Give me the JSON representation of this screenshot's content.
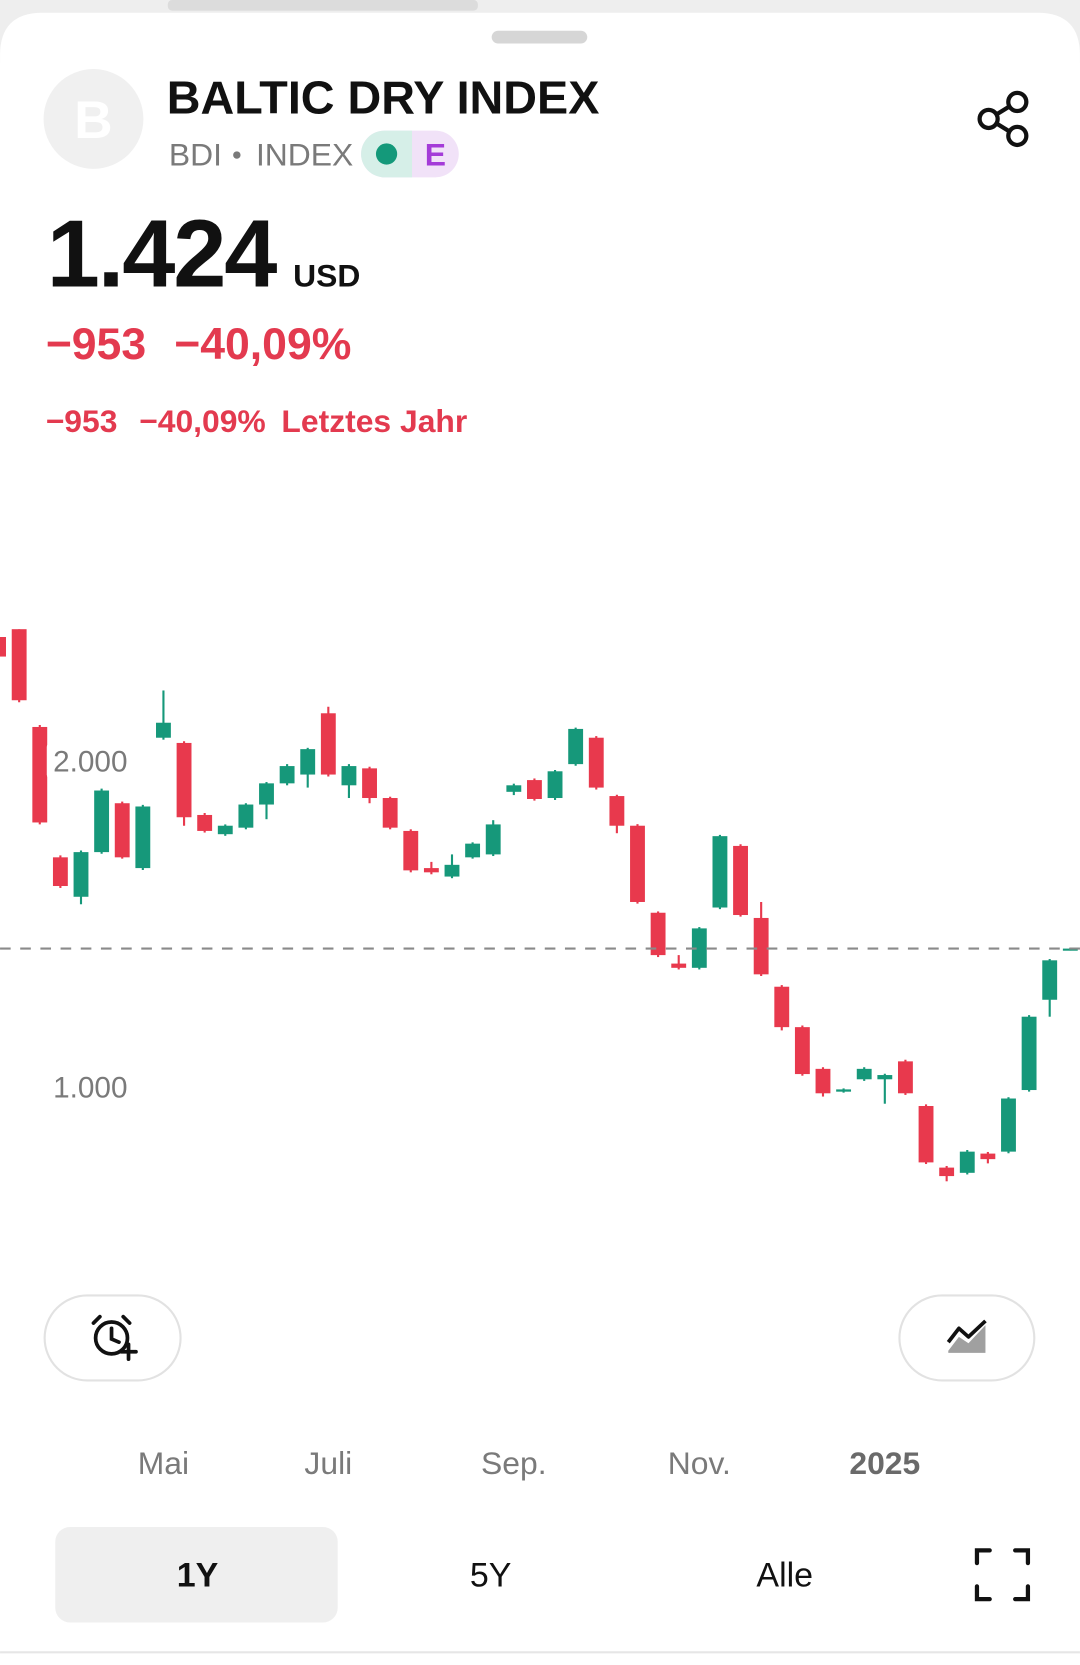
{
  "header": {
    "avatar_letter": "B",
    "title": "BALTIC DRY INDEX",
    "ticker": "BDI",
    "instrument_type": "INDEX",
    "badge": "E",
    "price": "1.424",
    "currency": "USD",
    "change": "−953",
    "change_percent": "−40,09%",
    "period_change": "−953",
    "period_change_percent": "−40,09%",
    "period_label": "Letztes Jahr"
  },
  "chart_data": {
    "type": "candlestick",
    "categories": [
      null,
      null,
      null,
      null,
      null,
      null,
      null,
      null,
      "Mai",
      null,
      null,
      null,
      null,
      null,
      null,
      null,
      "Juli",
      null,
      null,
      null,
      null,
      null,
      null,
      null,
      null,
      "Sep.",
      null,
      null,
      null,
      null,
      null,
      null,
      null,
      null,
      "Nov.",
      null,
      null,
      null,
      null,
      null,
      null,
      null,
      null,
      "2025",
      null,
      null,
      null,
      null,
      null,
      null,
      null,
      null,
      null
    ],
    "open": [
      2380,
      2404,
      2104,
      1704,
      1583,
      1720,
      1870,
      1671,
      2071,
      2055,
      1834,
      1775,
      1795,
      1866,
      1931,
      1958,
      2146,
      1925,
      1977,
      1886,
      1785,
      1671,
      1645,
      1704,
      1713,
      1905,
      1941,
      1886,
      1990,
      2071,
      1892,
      1801,
      1534,
      1378,
      1365,
      1550,
      1739,
      1518,
      1307,
      1183,
      1055,
      985,
      1023,
      1023,
      1078,
      941,
      752,
      736,
      795,
      801,
      990,
      1267,
      1420
    ],
    "high": [
      2390,
      2404,
      2110,
      1710,
      1725,
      1915,
      1875,
      1865,
      2216,
      2060,
      1840,
      1805,
      1870,
      1935,
      1990,
      2040,
      2166,
      1990,
      1982,
      1890,
      1790,
      1690,
      1713,
      1750,
      1818,
      1930,
      1946,
      1972,
      2102,
      2076,
      1896,
      1806,
      1538,
      1404,
      1490,
      1773,
      1744,
      1567,
      1312,
      1188,
      1060,
      995,
      1060,
      1040,
      1083,
      946,
      757,
      806,
      800,
      968,
      1220,
      1392,
      1426
    ],
    "low": [
      2310,
      2180,
      1805,
      1610,
      1560,
      1715,
      1700,
      1665,
      2065,
      1801,
      1780,
      1770,
      1790,
      1821,
      1925,
      1918,
      1952,
      1886,
      1870,
      1790,
      1658,
      1652,
      1640,
      1700,
      1708,
      1895,
      1878,
      1880,
      1985,
      1912,
      1778,
      1562,
      1398,
      1360,
      1360,
      1545,
      1522,
      1340,
      1173,
      1034,
      970,
      982,
      1018,
      948,
      975,
      763,
      710,
      731,
      765,
      796,
      985,
      1215,
      1418
    ],
    "close": [
      2320,
      2186,
      1811,
      1616,
      1720,
      1909,
      1704,
      1860,
      2117,
      1827,
      1785,
      1801,
      1866,
      1931,
      1984,
      2036,
      1958,
      1984,
      1886,
      1795,
      1664,
      1658,
      1681,
      1746,
      1805,
      1925,
      1883,
      1968,
      2098,
      1918,
      1801,
      1567,
      1404,
      1365,
      1486,
      1769,
      1527,
      1345,
      1183,
      1039,
      980,
      992,
      1055,
      1036,
      980,
      768,
      726,
      801,
      778,
      964,
      1215,
      1388,
      1424
    ],
    "up_color": "#16987a",
    "down_color": "#e8394d",
    "ylim": [
      490,
      2510
    ],
    "yticks": [
      {
        "value": 1000,
        "label": "1.000"
      },
      {
        "value": 2000,
        "label": "2.000"
      }
    ],
    "grid": false,
    "last_price_line": true
  },
  "controls": {
    "ranges": [
      "1Y",
      "5Y",
      "Alle"
    ],
    "selected_index": 0
  }
}
